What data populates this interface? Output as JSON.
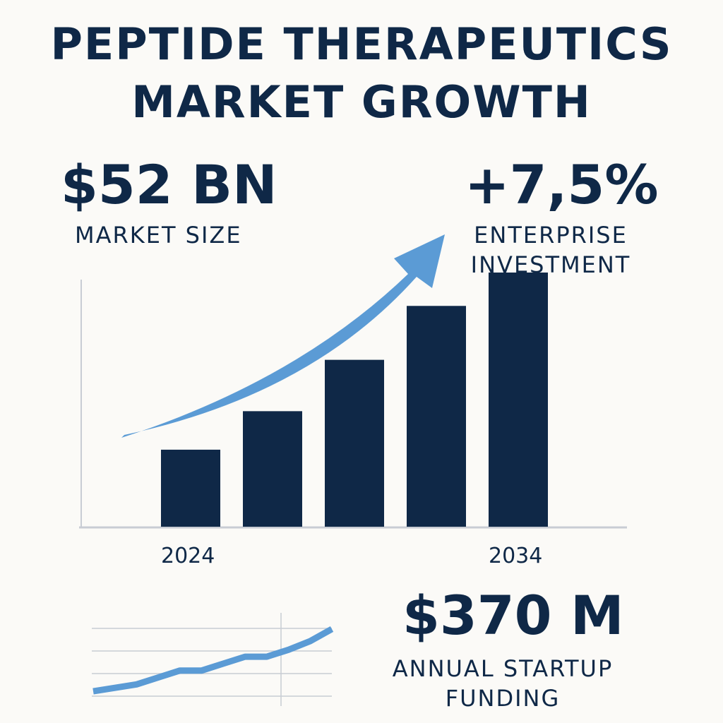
{
  "title": {
    "line1": "PEPTIDE THERAPEUTICS",
    "line2": "MARKET GROWTH"
  },
  "stats": {
    "market_size": {
      "value": "$52 BN",
      "label": "MARKET SIZE"
    },
    "enterprise_investment": {
      "value": "+7,5%",
      "label_line1": "ENTERPRISE",
      "label_line2": "INVESTMENT"
    },
    "startup_funding": {
      "value": "$370 M",
      "label_line1": "ANNUAL STARTUP",
      "label_line2": "FUNDING"
    }
  },
  "colors": {
    "navy": "#0f2847",
    "arrow_blue": "#5b9bd5",
    "axis_gray": "#c8ccd4",
    "background": "#fbfaf7"
  },
  "chart_data": [
    {
      "type": "bar",
      "categories": [
        "2024",
        "",
        "",
        "",
        "2034"
      ],
      "values": [
        30,
        45,
        65,
        86,
        99
      ],
      "ylim": [
        0,
        110
      ],
      "tick_labels": [
        "2024",
        "2034"
      ],
      "trend_arrow": "up",
      "grid": false
    },
    {
      "type": "line",
      "x": [
        0,
        1,
        2,
        3,
        4,
        5,
        6,
        7,
        8,
        9,
        10,
        11
      ],
      "values": [
        2,
        4,
        6,
        10,
        14,
        14,
        18,
        22,
        22,
        26,
        31,
        38
      ],
      "ylim": [
        0,
        40
      ],
      "grid": true
    }
  ]
}
